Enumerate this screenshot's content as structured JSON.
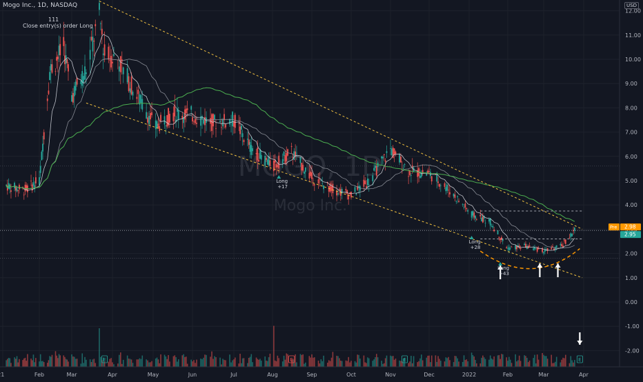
{
  "header": {
    "title": "Mogo Inc., 1D, NASDAQ",
    "currency": "USD",
    "order_count": "111",
    "order_label": "Close entry(s) order Long"
  },
  "watermark": {
    "symbol": "MOGO, 1D",
    "name": "Mogo Inc."
  },
  "price_axis": {
    "ticks": [
      "12.00",
      "11.00",
      "10.00",
      "9.00",
      "8.00",
      "7.00",
      "6.00",
      "5.00",
      "4.00",
      "3.00",
      "2.00",
      "1.00",
      "0.00",
      "-1.00",
      "-2.00"
    ]
  },
  "time_axis": {
    "labels": [
      "2021",
      "Feb",
      "Mar",
      "Apr",
      "May",
      "Jun",
      "Jul",
      "Aug",
      "Sep",
      "Oct",
      "Nov",
      "Dec",
      "2022",
      "Feb",
      "Mar",
      "Apr"
    ]
  },
  "price_tags": {
    "pre_label": "Pre",
    "pre_value": "2.98",
    "last_value": "2.95"
  },
  "trade_labels": [
    {
      "side": "Long",
      "value": "+17"
    },
    {
      "side": "Long",
      "value": "+28"
    },
    {
      "side": "Long",
      "value": "+43"
    }
  ],
  "earnings_marker": "E",
  "colors": {
    "background": "#131722",
    "up_candle": "#26a69a",
    "down_candle": "#ef5350",
    "ma_fast": "#d1d4dc",
    "ma_slow": "#9598a1",
    "ma_long": "#4caf50",
    "trendline": "#f0c040",
    "pre_tag": "#ff9800",
    "last_tag": "#26a69a"
  },
  "chart_data": {
    "type": "candlestick",
    "title": "Mogo Inc., 1D, NASDAQ",
    "x": [
      "2021-01-04",
      "2021-01-19",
      "2021-02-01",
      "2021-02-10",
      "2021-02-22",
      "2021-03-01",
      "2021-03-12",
      "2021-03-22",
      "2021-03-26",
      "2021-04-05",
      "2021-04-15",
      "2021-05-03",
      "2021-05-17",
      "2021-06-01",
      "2021-06-15",
      "2021-07-01",
      "2021-07-15",
      "2021-08-02",
      "2021-08-16",
      "2021-09-01",
      "2021-09-15",
      "2021-10-01",
      "2021-10-15",
      "2021-11-01",
      "2021-11-15",
      "2021-12-01",
      "2021-12-15",
      "2022-01-03",
      "2022-01-18",
      "2022-02-01",
      "2022-02-15",
      "2022-03-01",
      "2022-03-15",
      "2022-03-25"
    ],
    "series": [
      {
        "values": [
          4.8,
          4.6,
          5.0,
          9.5,
          10.5,
          8.5,
          9.6,
          11.8,
          10.2,
          10.0,
          8.9,
          7.2,
          7.8,
          7.7,
          7.4,
          7.5,
          6.3,
          5.6,
          6.2,
          5.1,
          4.7,
          4.4,
          5.0,
          6.3,
          5.4,
          5.3,
          4.7,
          3.6,
          3.3,
          2.2,
          2.3,
          2.1,
          2.3,
          2.95
        ]
      }
    ],
    "ylim": [
      -2.5,
      12.5
    ],
    "trendlines": [
      {
        "style": "dashed",
        "x": [
          "2021-03-22",
          "2022-03-31"
        ],
        "y": [
          12.4,
          3.0
        ]
      },
      {
        "style": "dashed",
        "x": [
          "2021-03-12",
          "2022-03-31"
        ],
        "y": [
          8.2,
          1.0
        ]
      }
    ],
    "levels": [
      3.75,
      2.6
    ],
    "trades": [
      {
        "x": "2021-08-06",
        "label": "Long",
        "value": "+17"
      },
      {
        "x": "2022-01-03",
        "label": "Long",
        "value": "+28"
      },
      {
        "x": "2022-01-26",
        "label": "Long",
        "value": "+43"
      }
    ],
    "last_price": 2.95,
    "pre_market_price": 2.98
  }
}
